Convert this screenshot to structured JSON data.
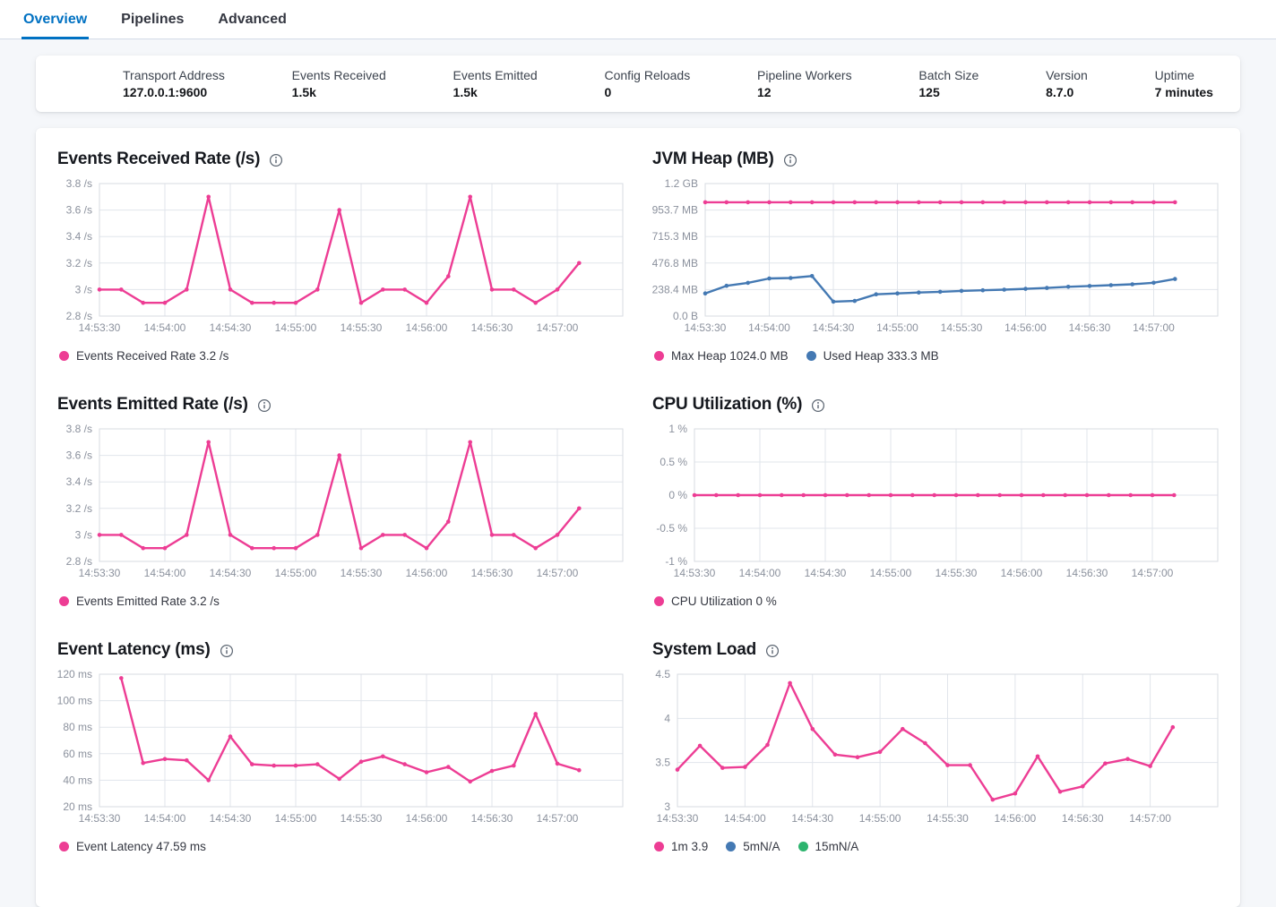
{
  "tabs": [
    {
      "label": "Overview",
      "active": true
    },
    {
      "label": "Pipelines",
      "active": false
    },
    {
      "label": "Advanced",
      "active": false
    }
  ],
  "stats": [
    {
      "label": "Transport Address",
      "value": "127.0.0.1:9600"
    },
    {
      "label": "Events Received",
      "value": "1.5k"
    },
    {
      "label": "Events Emitted",
      "value": "1.5k"
    },
    {
      "label": "Config Reloads",
      "value": "0"
    },
    {
      "label": "Pipeline Workers",
      "value": "12"
    },
    {
      "label": "Batch Size",
      "value": "125"
    },
    {
      "label": "Version",
      "value": "8.7.0"
    },
    {
      "label": "Uptime",
      "value": "7 minutes"
    }
  ],
  "colors": {
    "accent": "#0071c2",
    "pink": "#ed3d94",
    "blue": "#4479b3",
    "green": "#2db46e",
    "grid": "#e1e5eb",
    "plot_border": "#d7dbe2",
    "tick_text": "#8b919d",
    "icon": "#5a6470"
  },
  "chart_data": [
    {
      "type": "line",
      "title": "Events Received Rate (/s)",
      "x_tick_labels": [
        "14:53:30",
        "14:54:00",
        "14:54:30",
        "14:55:00",
        "14:55:30",
        "14:56:00",
        "14:56:30",
        "14:57:00"
      ],
      "x_tick_seconds": [
        0,
        30,
        60,
        90,
        120,
        150,
        180,
        210
      ],
      "x_domain_seconds": [
        0,
        240
      ],
      "ylim": [
        2.8,
        3.8
      ],
      "y_ticks": [
        {
          "value": 3.8,
          "label": "3.8 /s"
        },
        {
          "value": 3.6,
          "label": "3.6 /s"
        },
        {
          "value": 3.4,
          "label": "3.4 /s"
        },
        {
          "value": 3.2,
          "label": "3.2 /s"
        },
        {
          "value": 3.0,
          "label": "3 /s"
        },
        {
          "value": 2.8,
          "label": "2.8 /s"
        }
      ],
      "series": [
        {
          "name": "Events Received Rate",
          "color": "pink",
          "start_s": 0,
          "step_s": 10,
          "values": [
            3,
            3,
            2.9,
            2.9,
            3,
            3.7,
            3,
            2.9,
            2.9,
            2.9,
            3,
            3.6,
            2.9,
            3,
            3,
            2.9,
            3.1,
            3.7,
            3,
            3,
            2.9,
            3,
            3.2
          ]
        }
      ],
      "legend": [
        {
          "label": "Events Received Rate 3.2 /s",
          "color": "pink"
        }
      ]
    },
    {
      "type": "line",
      "title": "JVM Heap (MB)",
      "x_tick_labels": [
        "14:53:30",
        "14:54:00",
        "14:54:30",
        "14:55:00",
        "14:55:30",
        "14:56:00",
        "14:56:30",
        "14:57:00"
      ],
      "x_tick_seconds": [
        0,
        30,
        60,
        90,
        120,
        150,
        180,
        210
      ],
      "x_domain_seconds": [
        0,
        240
      ],
      "ylim": [
        0,
        1192.1
      ],
      "y_ticks": [
        {
          "value": 1192.1,
          "label": "1.2 GB"
        },
        {
          "value": 953.7,
          "label": "953.7 MB"
        },
        {
          "value": 715.3,
          "label": "715.3 MB"
        },
        {
          "value": 476.8,
          "label": "476.8 MB"
        },
        {
          "value": 238.4,
          "label": "238.4 MB"
        },
        {
          "value": 0,
          "label": "0.0 B"
        }
      ],
      "series": [
        {
          "name": "Max Heap",
          "color": "pink",
          "start_s": 0,
          "step_s": 10,
          "values": [
            1024,
            1024,
            1024,
            1024,
            1024,
            1024,
            1024,
            1024,
            1024,
            1024,
            1024,
            1024,
            1024,
            1024,
            1024,
            1024,
            1024,
            1024,
            1024,
            1024,
            1024,
            1024,
            1024
          ]
        },
        {
          "name": "Used Heap",
          "color": "blue",
          "start_s": 0,
          "step_s": 10,
          "values": [
            204,
            272,
            299,
            338,
            342,
            360,
            130,
            136,
            196,
            204,
            212,
            218,
            226,
            232,
            238,
            245,
            253,
            263,
            271,
            278,
            286,
            300,
            333.3
          ]
        }
      ],
      "legend": [
        {
          "label": "Max Heap 1024.0 MB",
          "color": "pink"
        },
        {
          "label": "Used Heap 333.3 MB",
          "color": "blue"
        }
      ]
    },
    {
      "type": "line",
      "title": "Events Emitted Rate (/s)",
      "x_tick_labels": [
        "14:53:30",
        "14:54:00",
        "14:54:30",
        "14:55:00",
        "14:55:30",
        "14:56:00",
        "14:56:30",
        "14:57:00"
      ],
      "x_tick_seconds": [
        0,
        30,
        60,
        90,
        120,
        150,
        180,
        210
      ],
      "x_domain_seconds": [
        0,
        240
      ],
      "ylim": [
        2.8,
        3.8
      ],
      "y_ticks": [
        {
          "value": 3.8,
          "label": "3.8 /s"
        },
        {
          "value": 3.6,
          "label": "3.6 /s"
        },
        {
          "value": 3.4,
          "label": "3.4 /s"
        },
        {
          "value": 3.2,
          "label": "3.2 /s"
        },
        {
          "value": 3.0,
          "label": "3 /s"
        },
        {
          "value": 2.8,
          "label": "2.8 /s"
        }
      ],
      "series": [
        {
          "name": "Events Emitted Rate",
          "color": "pink",
          "start_s": 0,
          "step_s": 10,
          "values": [
            3,
            3,
            2.9,
            2.9,
            3,
            3.7,
            3,
            2.9,
            2.9,
            2.9,
            3,
            3.6,
            2.9,
            3,
            3,
            2.9,
            3.1,
            3.7,
            3,
            3,
            2.9,
            3,
            3.2
          ]
        }
      ],
      "legend": [
        {
          "label": "Events Emitted Rate 3.2 /s",
          "color": "pink"
        }
      ]
    },
    {
      "type": "line",
      "title": "CPU Utilization (%)",
      "x_tick_labels": [
        "14:53:30",
        "14:54:00",
        "14:54:30",
        "14:55:00",
        "14:55:30",
        "14:56:00",
        "14:56:30",
        "14:57:00"
      ],
      "x_tick_seconds": [
        0,
        30,
        60,
        90,
        120,
        150,
        180,
        210
      ],
      "x_domain_seconds": [
        0,
        240
      ],
      "ylim": [
        -1,
        1
      ],
      "y_ticks": [
        {
          "value": 1,
          "label": "1 %"
        },
        {
          "value": 0.5,
          "label": "0.5 %"
        },
        {
          "value": 0,
          "label": "0 %"
        },
        {
          "value": -0.5,
          "label": "-0.5 %"
        },
        {
          "value": -1,
          "label": "-1 %"
        }
      ],
      "series": [
        {
          "name": "CPU Utilization",
          "color": "pink",
          "start_s": 0,
          "step_s": 10,
          "values": [
            0,
            0,
            0,
            0,
            0,
            0,
            0,
            0,
            0,
            0,
            0,
            0,
            0,
            0,
            0,
            0,
            0,
            0,
            0,
            0,
            0,
            0,
            0
          ]
        }
      ],
      "legend": [
        {
          "label": "CPU Utilization 0 %",
          "color": "pink"
        }
      ]
    },
    {
      "type": "line",
      "title": "Event Latency (ms)",
      "x_tick_labels": [
        "14:53:30",
        "14:54:00",
        "14:54:30",
        "14:55:00",
        "14:55:30",
        "14:56:00",
        "14:56:30",
        "14:57:00"
      ],
      "x_tick_seconds": [
        0,
        30,
        60,
        90,
        120,
        150,
        180,
        210
      ],
      "x_domain_seconds": [
        0,
        240
      ],
      "ylim": [
        20,
        120
      ],
      "y_ticks": [
        {
          "value": 120,
          "label": "120 ms"
        },
        {
          "value": 100,
          "label": "100 ms"
        },
        {
          "value": 80,
          "label": "80 ms"
        },
        {
          "value": 60,
          "label": "60 ms"
        },
        {
          "value": 40,
          "label": "40 ms"
        },
        {
          "value": 20,
          "label": "20 ms"
        }
      ],
      "series": [
        {
          "name": "Event Latency",
          "color": "pink",
          "start_s": 10,
          "step_s": 10,
          "values": [
            117,
            53,
            56,
            55,
            40,
            73,
            52,
            51,
            51,
            52,
            41,
            54,
            58,
            52,
            46,
            50,
            39,
            47,
            51,
            90,
            52.5,
            47.59
          ]
        }
      ],
      "legend": [
        {
          "label": "Event Latency 47.59 ms",
          "color": "pink"
        }
      ]
    },
    {
      "type": "line",
      "title": "System Load",
      "x_tick_labels": [
        "14:53:30",
        "14:54:00",
        "14:54:30",
        "14:55:00",
        "14:55:30",
        "14:56:00",
        "14:56:30",
        "14:57:00"
      ],
      "x_tick_seconds": [
        0,
        30,
        60,
        90,
        120,
        150,
        180,
        210
      ],
      "x_domain_seconds": [
        0,
        240
      ],
      "ylim": [
        3,
        4.5
      ],
      "y_ticks": [
        {
          "value": 4.5,
          "label": "4.5"
        },
        {
          "value": 4,
          "label": "4"
        },
        {
          "value": 3.5,
          "label": "3.5"
        },
        {
          "value": 3,
          "label": "3"
        }
      ],
      "series": [
        {
          "name": "1m",
          "color": "pink",
          "start_s": 0,
          "step_s": 10,
          "values": [
            3.42,
            3.69,
            3.44,
            3.45,
            3.7,
            4.4,
            3.88,
            3.59,
            3.56,
            3.62,
            3.88,
            3.72,
            3.47,
            3.47,
            3.08,
            3.15,
            3.57,
            3.17,
            3.23,
            3.49,
            3.54,
            3.46,
            3.9
          ]
        }
      ],
      "legend": [
        {
          "label": "1m 3.9",
          "color": "pink"
        },
        {
          "label": "5mN/A",
          "color": "blue"
        },
        {
          "label": "15mN/A",
          "color": "green"
        }
      ]
    }
  ]
}
